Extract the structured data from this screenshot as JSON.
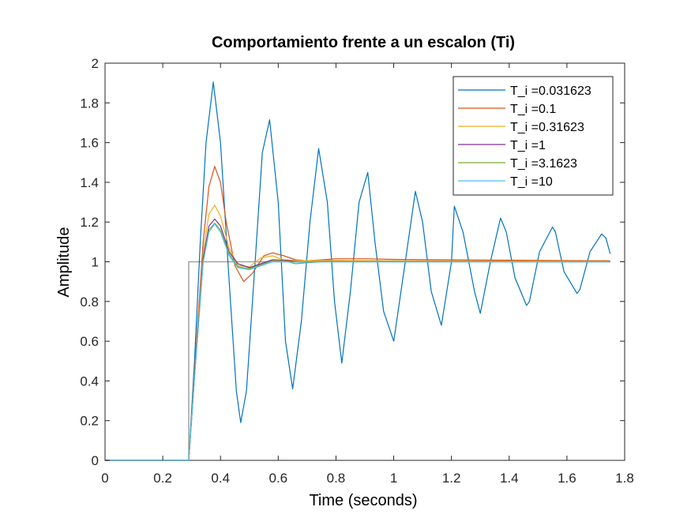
{
  "chart_data": {
    "type": "line",
    "title": "Comportamiento frente a un escalon (Ti)",
    "xlabel": "Time (seconds)",
    "ylabel": "Amplitude",
    "xlim": [
      0,
      1.8
    ],
    "ylim": [
      0,
      2
    ],
    "xticks": [
      "0",
      "0.2",
      "0.4",
      "0.6",
      "0.8",
      "1",
      "1.2",
      "1.4",
      "1.6",
      "1.8"
    ],
    "yticks": [
      "0",
      "0.2",
      "0.4",
      "0.6",
      "0.8",
      "1",
      "1.2",
      "1.4",
      "1.6",
      "1.8",
      "2"
    ],
    "legend_position": "top-right",
    "reference": {
      "color": "#a0a0a0",
      "x": [
        0,
        0.29,
        0.29,
        1.75
      ],
      "y": [
        0,
        0,
        1,
        1
      ]
    },
    "series": [
      {
        "name": "T_i =0.031623",
        "color": "#0072BD",
        "x": [
          0,
          0.29,
          0.31,
          0.33,
          0.35,
          0.375,
          0.4,
          0.43,
          0.455,
          0.47,
          0.49,
          0.52,
          0.545,
          0.57,
          0.6,
          0.625,
          0.65,
          0.68,
          0.71,
          0.74,
          0.77,
          0.795,
          0.82,
          0.85,
          0.88,
          0.91,
          0.935,
          0.965,
          1.0,
          1.04,
          1.075,
          1.1,
          1.13,
          1.165,
          1.2,
          1.21,
          1.24,
          1.28,
          1.3,
          1.335,
          1.37,
          1.39,
          1.42,
          1.46,
          1.47,
          1.505,
          1.55,
          1.56,
          1.59,
          1.635,
          1.645,
          1.68,
          1.72,
          1.735,
          1.75
        ],
        "y": [
          0,
          0,
          0.5,
          1.1,
          1.6,
          1.905,
          1.6,
          0.9,
          0.35,
          0.19,
          0.35,
          1.0,
          1.55,
          1.715,
          1.3,
          0.6,
          0.36,
          0.7,
          1.2,
          1.57,
          1.3,
          0.8,
          0.49,
          0.85,
          1.3,
          1.45,
          1.1,
          0.75,
          0.6,
          1.0,
          1.355,
          1.2,
          0.85,
          0.68,
          1.0,
          1.28,
          1.15,
          0.85,
          0.74,
          1.0,
          1.22,
          1.15,
          0.92,
          0.78,
          0.8,
          1.05,
          1.175,
          1.15,
          0.95,
          0.84,
          0.86,
          1.05,
          1.14,
          1.12,
          1.04
        ]
      },
      {
        "name": "T_i =0.1",
        "color": "#D95319",
        "x": [
          0,
          0.29,
          0.31,
          0.34,
          0.36,
          0.38,
          0.4,
          0.42,
          0.45,
          0.48,
          0.51,
          0.55,
          0.58,
          0.62,
          0.66,
          0.7,
          0.75,
          0.8,
          0.9,
          1.0,
          1.2,
          1.4,
          1.6,
          1.75
        ],
        "y": [
          0,
          0,
          0.45,
          1.1,
          1.38,
          1.48,
          1.4,
          1.2,
          0.98,
          0.9,
          0.94,
          1.03,
          1.045,
          1.03,
          1.01,
          1.005,
          1.01,
          1.015,
          1.015,
          1.012,
          1.01,
          1.008,
          1.006,
          1.005
        ]
      },
      {
        "name": "T_i =0.31623",
        "color": "#EDB120",
        "x": [
          0,
          0.29,
          0.31,
          0.34,
          0.36,
          0.38,
          0.4,
          0.43,
          0.46,
          0.5,
          0.54,
          0.58,
          0.62,
          0.68,
          0.75,
          0.85,
          1.0,
          1.2,
          1.5,
          1.75
        ],
        "y": [
          0,
          0,
          0.42,
          1.05,
          1.24,
          1.285,
          1.23,
          1.07,
          0.98,
          0.975,
          1.02,
          1.03,
          1.01,
          1.005,
          1.008,
          1.006,
          1.005,
          1.004,
          1.003,
          1.002
        ]
      },
      {
        "name": "T_i =1",
        "color": "#7E2F8E",
        "x": [
          0,
          0.29,
          0.31,
          0.34,
          0.36,
          0.38,
          0.4,
          0.43,
          0.46,
          0.5,
          0.54,
          0.58,
          0.62,
          0.68,
          0.75,
          0.85,
          1.0,
          1.2,
          1.5,
          1.75
        ],
        "y": [
          0,
          0,
          0.42,
          1.02,
          1.18,
          1.215,
          1.18,
          1.05,
          0.99,
          0.97,
          0.99,
          1.01,
          1.008,
          0.998,
          1.002,
          1.001,
          1.001,
          1.001,
          1.0,
          1.0
        ]
      },
      {
        "name": "T_i =3.1623",
        "color": "#77AC30",
        "x": [
          0,
          0.29,
          0.31,
          0.34,
          0.36,
          0.38,
          0.4,
          0.43,
          0.46,
          0.5,
          0.54,
          0.58,
          0.62,
          0.66,
          0.7,
          0.75,
          0.85,
          1.0,
          1.2,
          1.5,
          1.75
        ],
        "y": [
          0,
          0,
          0.42,
          1.0,
          1.16,
          1.195,
          1.16,
          1.04,
          0.975,
          0.965,
          0.985,
          1.005,
          1.005,
          0.99,
          0.995,
          1.0,
          1.0,
          1.0,
          1.0,
          1.0,
          1.0
        ]
      },
      {
        "name": "T_i =10",
        "color": "#4DBEEE",
        "x": [
          0,
          0.29,
          0.31,
          0.34,
          0.36,
          0.38,
          0.4,
          0.43,
          0.46,
          0.5,
          0.54,
          0.58,
          0.62,
          0.68,
          0.75,
          0.85,
          1.0,
          1.2,
          1.5,
          1.75
        ],
        "y": [
          0,
          0,
          0.42,
          1.0,
          1.15,
          1.19,
          1.15,
          1.03,
          0.97,
          0.96,
          0.98,
          1.0,
          1.0,
          0.998,
          1.0,
          1.0,
          1.0,
          1.0,
          1.0,
          1.0
        ]
      }
    ]
  }
}
